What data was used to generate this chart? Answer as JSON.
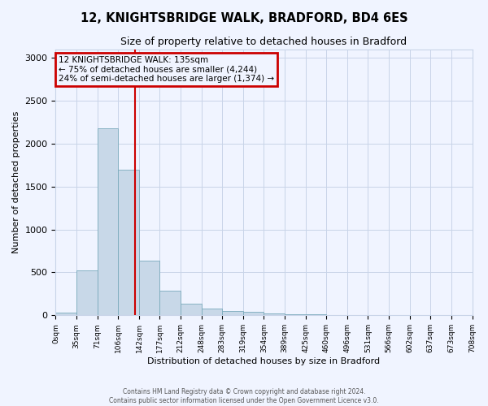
{
  "title": "12, KNIGHTSBRIDGE WALK, BRADFORD, BD4 6ES",
  "subtitle": "Size of property relative to detached houses in Bradford",
  "xlabel": "Distribution of detached houses by size in Bradford",
  "ylabel": "Number of detached properties",
  "bins": [
    0,
    35,
    71,
    106,
    142,
    177,
    212,
    248,
    283,
    319,
    354,
    389,
    425,
    460,
    496,
    531,
    566,
    602,
    637,
    673,
    708
  ],
  "bin_labels": [
    "0sqm",
    "35sqm",
    "71sqm",
    "106sqm",
    "142sqm",
    "177sqm",
    "212sqm",
    "248sqm",
    "283sqm",
    "319sqm",
    "354sqm",
    "389sqm",
    "425sqm",
    "460sqm",
    "496sqm",
    "531sqm",
    "566sqm",
    "602sqm",
    "637sqm",
    "673sqm",
    "708sqm"
  ],
  "counts": [
    30,
    520,
    2180,
    1700,
    640,
    290,
    140,
    80,
    50,
    40,
    20,
    15,
    10,
    5,
    5,
    3,
    2,
    2,
    1,
    1
  ],
  "bar_color": "#c8d8e8",
  "bar_edge_color": "#7aaabb",
  "property_size": 135,
  "red_line_color": "#cc0000",
  "annotation_line1": "12 KNIGHTSBRIDGE WALK: 135sqm",
  "annotation_line2": "← 75% of detached houses are smaller (4,244)",
  "annotation_line3": "24% of semi-detached houses are larger (1,374) →",
  "ylim": [
    0,
    3100
  ],
  "yticks": [
    0,
    500,
    1000,
    1500,
    2000,
    2500,
    3000
  ],
  "footer1": "Contains HM Land Registry data © Crown copyright and database right 2024.",
  "footer2": "Contains public sector information licensed under the Open Government Licence v3.0.",
  "bg_color": "#f0f4ff",
  "grid_color": "#c8d4e8"
}
